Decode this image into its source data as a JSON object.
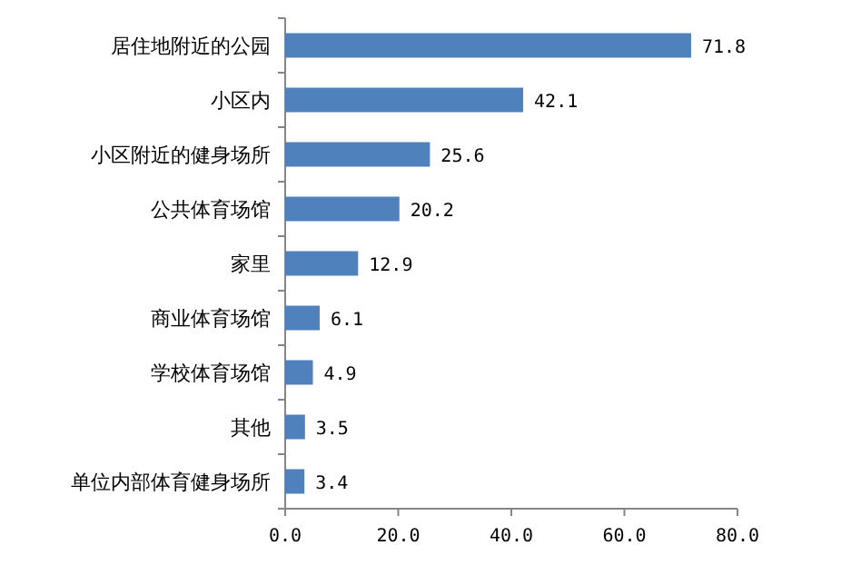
{
  "chart_data": {
    "type": "bar",
    "orientation": "horizontal",
    "categories": [
      "居住地附近的公园",
      "小区内",
      "小区附近的健身场所",
      "公共体育场馆",
      "家里",
      "商业体育场馆",
      "学校体育场馆",
      "其他",
      "单位内部体育健身场所"
    ],
    "values": [
      71.8,
      42.1,
      25.6,
      20.2,
      12.9,
      6.1,
      4.9,
      3.5,
      3.4
    ],
    "color": "#4f81bd",
    "xlim": [
      0,
      80
    ],
    "xticks": [
      {
        "value": 0,
        "label": "0.0"
      },
      {
        "value": 20,
        "label": "20.0"
      },
      {
        "value": 40,
        "label": "40.0"
      },
      {
        "value": 60,
        "label": "60.0"
      },
      {
        "value": 80,
        "label": "80.0"
      }
    ],
    "data_labels": true
  }
}
